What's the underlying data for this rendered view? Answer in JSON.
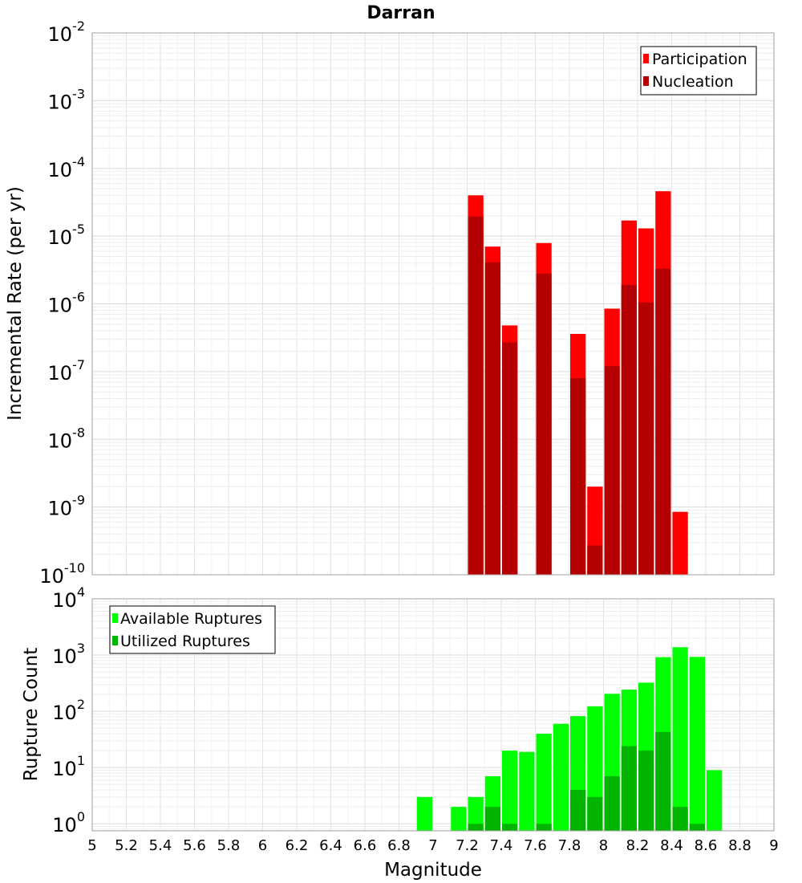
{
  "chart_data": [
    {
      "type": "bar",
      "title": "Darran",
      "xlabel": "",
      "ylabel": "Incremental Rate (per yr)",
      "xlim": [
        5,
        9
      ],
      "ylim": [
        1e-10,
        0.01
      ],
      "yscale": "log",
      "y_ticks": [
        {
          "base": "10",
          "exp": "-10"
        },
        {
          "base": "10",
          "exp": "-9"
        },
        {
          "base": "10",
          "exp": "-8"
        },
        {
          "base": "10",
          "exp": "-7"
        },
        {
          "base": "10",
          "exp": "-6"
        },
        {
          "base": "10",
          "exp": "-5"
        },
        {
          "base": "10",
          "exp": "-4"
        },
        {
          "base": "10",
          "exp": "-3"
        },
        {
          "base": "10",
          "exp": "-2"
        }
      ],
      "bin_width": 0.1,
      "grid": true,
      "legend_position": "top-right",
      "x": [
        7.25,
        7.35,
        7.45,
        7.65,
        7.85,
        7.95,
        8.05,
        8.15,
        8.25,
        8.35,
        8.45
      ],
      "series": [
        {
          "name": "Participation",
          "color": "#ff0000",
          "values": [
            4e-05,
            7e-06,
            4.8e-07,
            7.9e-06,
            3.6e-07,
            2e-09,
            8.5e-07,
            1.7e-05,
            1.3e-05,
            4.6e-05,
            8.5e-10
          ]
        },
        {
          "name": "Nucleation",
          "color": "#b40000",
          "values": [
            1.95e-05,
            4.1e-06,
            2.7e-07,
            2.8e-06,
            8e-08,
            2.7e-10,
            1.2e-07,
            1.9e-06,
            1.05e-06,
            3.3e-06,
            null
          ]
        }
      ]
    },
    {
      "type": "bar",
      "title": "",
      "xlabel": "Magnitude",
      "ylabel": "Rupture Count",
      "xlim": [
        5,
        9
      ],
      "ylim": [
        0.75,
        10000
      ],
      "yscale": "log",
      "x_ticks": [
        "5",
        "5.2",
        "5.4",
        "5.6",
        "5.8",
        "6",
        "6.2",
        "6.4",
        "6.6",
        "6.8",
        "7",
        "7.2",
        "7.4",
        "7.6",
        "7.8",
        "8",
        "8.2",
        "8.4",
        "8.6",
        "8.8",
        "9"
      ],
      "y_ticks": [
        {
          "base": "10",
          "exp": "0"
        },
        {
          "base": "10",
          "exp": "1"
        },
        {
          "base": "10",
          "exp": "2"
        },
        {
          "base": "10",
          "exp": "3"
        },
        {
          "base": "10",
          "exp": "4"
        }
      ],
      "bin_width": 0.1,
      "grid": true,
      "legend_position": "top-left",
      "x": [
        6.95,
        7.15,
        7.25,
        7.35,
        7.45,
        7.55,
        7.65,
        7.75,
        7.85,
        7.95,
        8.05,
        8.15,
        8.25,
        8.35,
        8.45,
        8.55,
        8.65
      ],
      "series": [
        {
          "name": "Available Ruptures",
          "color": "#00ff00",
          "values": [
            3,
            2,
            3,
            7,
            20,
            19,
            40,
            60,
            82,
            123,
            205,
            243,
            323,
            920,
            1380,
            930,
            9
          ]
        },
        {
          "name": "Utilized Ruptures",
          "color": "#00b400",
          "values": [
            null,
            null,
            1,
            2,
            1,
            null,
            1,
            null,
            4,
            3,
            7,
            24,
            20,
            43,
            2,
            1,
            null
          ]
        }
      ]
    }
  ]
}
